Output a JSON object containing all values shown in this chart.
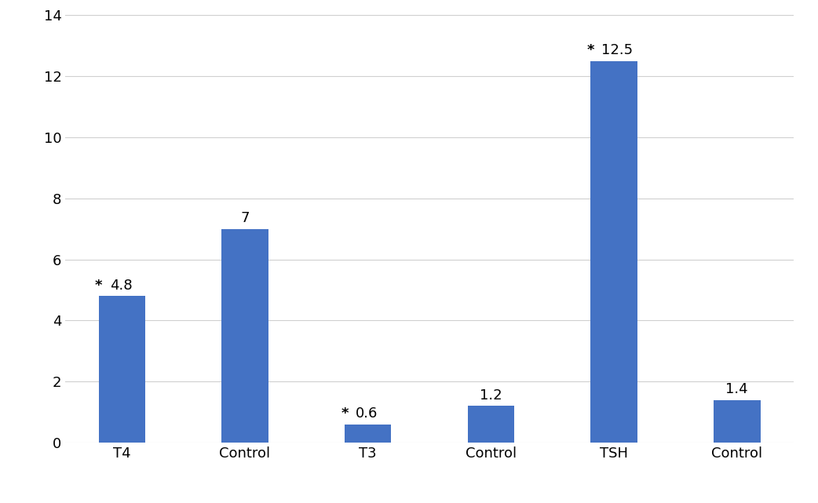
{
  "categories": [
    "T4",
    "Control",
    "T3",
    "Control",
    "TSH",
    "Control"
  ],
  "values": [
    4.8,
    7.0,
    0.6,
    1.2,
    12.5,
    1.4
  ],
  "labels": [
    "4.8",
    "7",
    "0.6",
    "1.2",
    "12.5",
    "1.4"
  ],
  "has_star": [
    true,
    false,
    true,
    false,
    true,
    false
  ],
  "bar_color": "#4472C4",
  "background_color": "#ffffff",
  "plot_bg_color": "#ffffff",
  "ylim": [
    0,
    14
  ],
  "yticks": [
    0,
    2,
    4,
    6,
    8,
    10,
    12,
    14
  ],
  "grid_color": "#d0d0d0",
  "label_fontsize": 13,
  "tick_fontsize": 13,
  "annotation_fontsize": 13,
  "bar_width": 0.38
}
